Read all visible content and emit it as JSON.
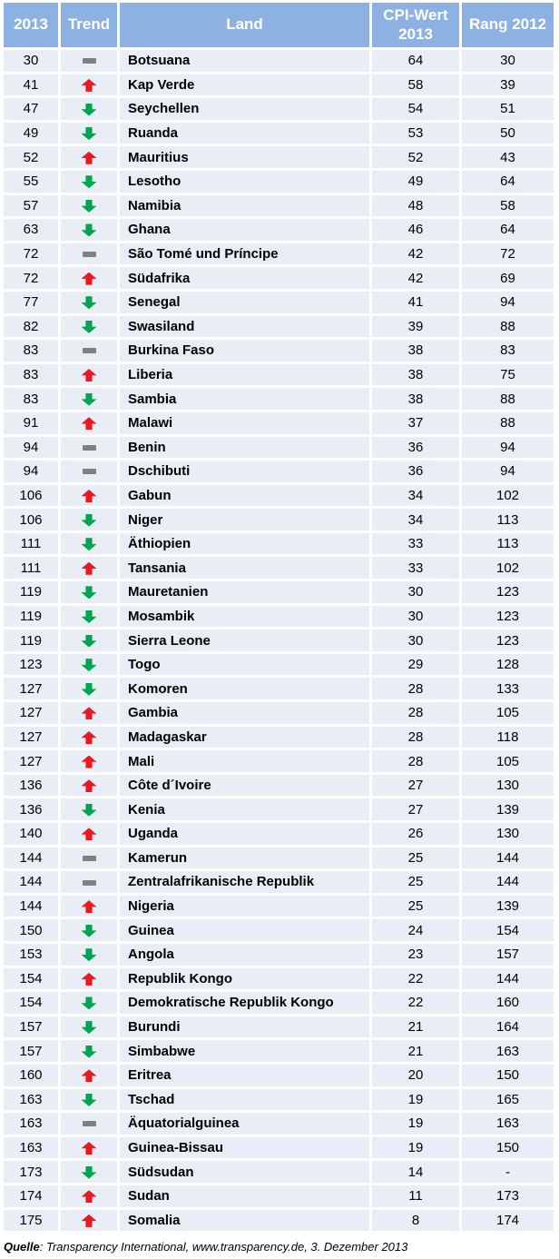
{
  "chart_data": {
    "type": "table",
    "title": "",
    "columns": [
      "2013",
      "Trend",
      "Land",
      "CPI-Wert 2013",
      "Rang 2012"
    ],
    "legend": {
      "trend_values": [
        "up",
        "down",
        "same"
      ],
      "trend_icon_names": [
        "trend-up-icon",
        "trend-down-icon",
        "trend-same-icon"
      ]
    },
    "rows": [
      [
        "30",
        "same",
        "Botsuana",
        "64",
        "30"
      ],
      [
        "41",
        "up",
        "Kap Verde",
        "58",
        "39"
      ],
      [
        "47",
        "down",
        "Seychellen",
        "54",
        "51"
      ],
      [
        "49",
        "down",
        "Ruanda",
        "53",
        "50"
      ],
      [
        "52",
        "up",
        "Mauritius",
        "52",
        "43"
      ],
      [
        "55",
        "down",
        "Lesotho",
        "49",
        "64"
      ],
      [
        "57",
        "down",
        "Namibia",
        "48",
        "58"
      ],
      [
        "63",
        "down",
        "Ghana",
        "46",
        "64"
      ],
      [
        "72",
        "same",
        "São Tomé und Príncipe",
        "42",
        "72"
      ],
      [
        "72",
        "up",
        "Südafrika",
        "42",
        "69"
      ],
      [
        "77",
        "down",
        "Senegal",
        "41",
        "94"
      ],
      [
        "82",
        "down",
        "Swasiland",
        "39",
        "88"
      ],
      [
        "83",
        "same",
        "Burkina Faso",
        "38",
        "83"
      ],
      [
        "83",
        "up",
        "Liberia",
        "38",
        "75"
      ],
      [
        "83",
        "down",
        "Sambia",
        "38",
        "88"
      ],
      [
        "91",
        "up",
        "Malawi",
        "37",
        "88"
      ],
      [
        "94",
        "same",
        "Benin",
        "36",
        "94"
      ],
      [
        "94",
        "same",
        "Dschibuti",
        "36",
        "94"
      ],
      [
        "106",
        "up",
        "Gabun",
        "34",
        "102"
      ],
      [
        "106",
        "down",
        "Niger",
        "34",
        "113"
      ],
      [
        "111",
        "down",
        "Äthiopien",
        "33",
        "113"
      ],
      [
        "111",
        "up",
        "Tansania",
        "33",
        "102"
      ],
      [
        "119",
        "down",
        "Mauretanien",
        "30",
        "123"
      ],
      [
        "119",
        "down",
        "Mosambik",
        "30",
        "123"
      ],
      [
        "119",
        "down",
        "Sierra Leone",
        "30",
        "123"
      ],
      [
        "123",
        "down",
        "Togo",
        "29",
        "128"
      ],
      [
        "127",
        "down",
        "Komoren",
        "28",
        "133"
      ],
      [
        "127",
        "up",
        "Gambia",
        "28",
        "105"
      ],
      [
        "127",
        "up",
        "Madagaskar",
        "28",
        "118"
      ],
      [
        "127",
        "up",
        "Mali",
        "28",
        "105"
      ],
      [
        "136",
        "up",
        "Côte d´Ivoire",
        "27",
        "130"
      ],
      [
        "136",
        "down",
        "Kenia",
        "27",
        "139"
      ],
      [
        "140",
        "up",
        "Uganda",
        "26",
        "130"
      ],
      [
        "144",
        "same",
        "Kamerun",
        "25",
        "144"
      ],
      [
        "144",
        "same",
        "Zentralafrikanische Republik",
        "25",
        "144"
      ],
      [
        "144",
        "up",
        "Nigeria",
        "25",
        "139"
      ],
      [
        "150",
        "down",
        "Guinea",
        "24",
        "154"
      ],
      [
        "153",
        "down",
        "Angola",
        "23",
        "157"
      ],
      [
        "154",
        "up",
        "Republik Kongo",
        "22",
        "144"
      ],
      [
        "154",
        "down",
        "Demokratische Republik Kongo",
        "22",
        "160"
      ],
      [
        "157",
        "down",
        "Burundi",
        "21",
        "164"
      ],
      [
        "157",
        "down",
        "Simbabwe",
        "21",
        "163"
      ],
      [
        "160",
        "up",
        "Eritrea",
        "20",
        "150"
      ],
      [
        "163",
        "down",
        "Tschad",
        "19",
        "165"
      ],
      [
        "163",
        "same",
        "Äquatorialguinea",
        "19",
        "163"
      ],
      [
        "163",
        "up",
        "Guinea-Bissau",
        "19",
        "150"
      ],
      [
        "173",
        "down",
        "Südsudan",
        "14",
        "-"
      ],
      [
        "174",
        "up",
        "Sudan",
        "11",
        "173"
      ],
      [
        "175",
        "up",
        "Somalia",
        "8",
        "174"
      ]
    ],
    "source": "Quelle: Transparency International, www.transparency.de, 3. Dezember 2013"
  },
  "footer": {
    "label": "Quelle",
    "text": ": Transparency International, www.transparency.de, 3. Dezember 2013"
  },
  "colors": {
    "header_bg": "#8DB1E2",
    "header_text": "#FFFFFF",
    "row_bg": "#E9EDF6",
    "grid_lines": "#FFFFFF",
    "trend_up": "#E8191F",
    "trend_down": "#00A54F",
    "trend_same": "#808080",
    "body_text": "#000000"
  }
}
